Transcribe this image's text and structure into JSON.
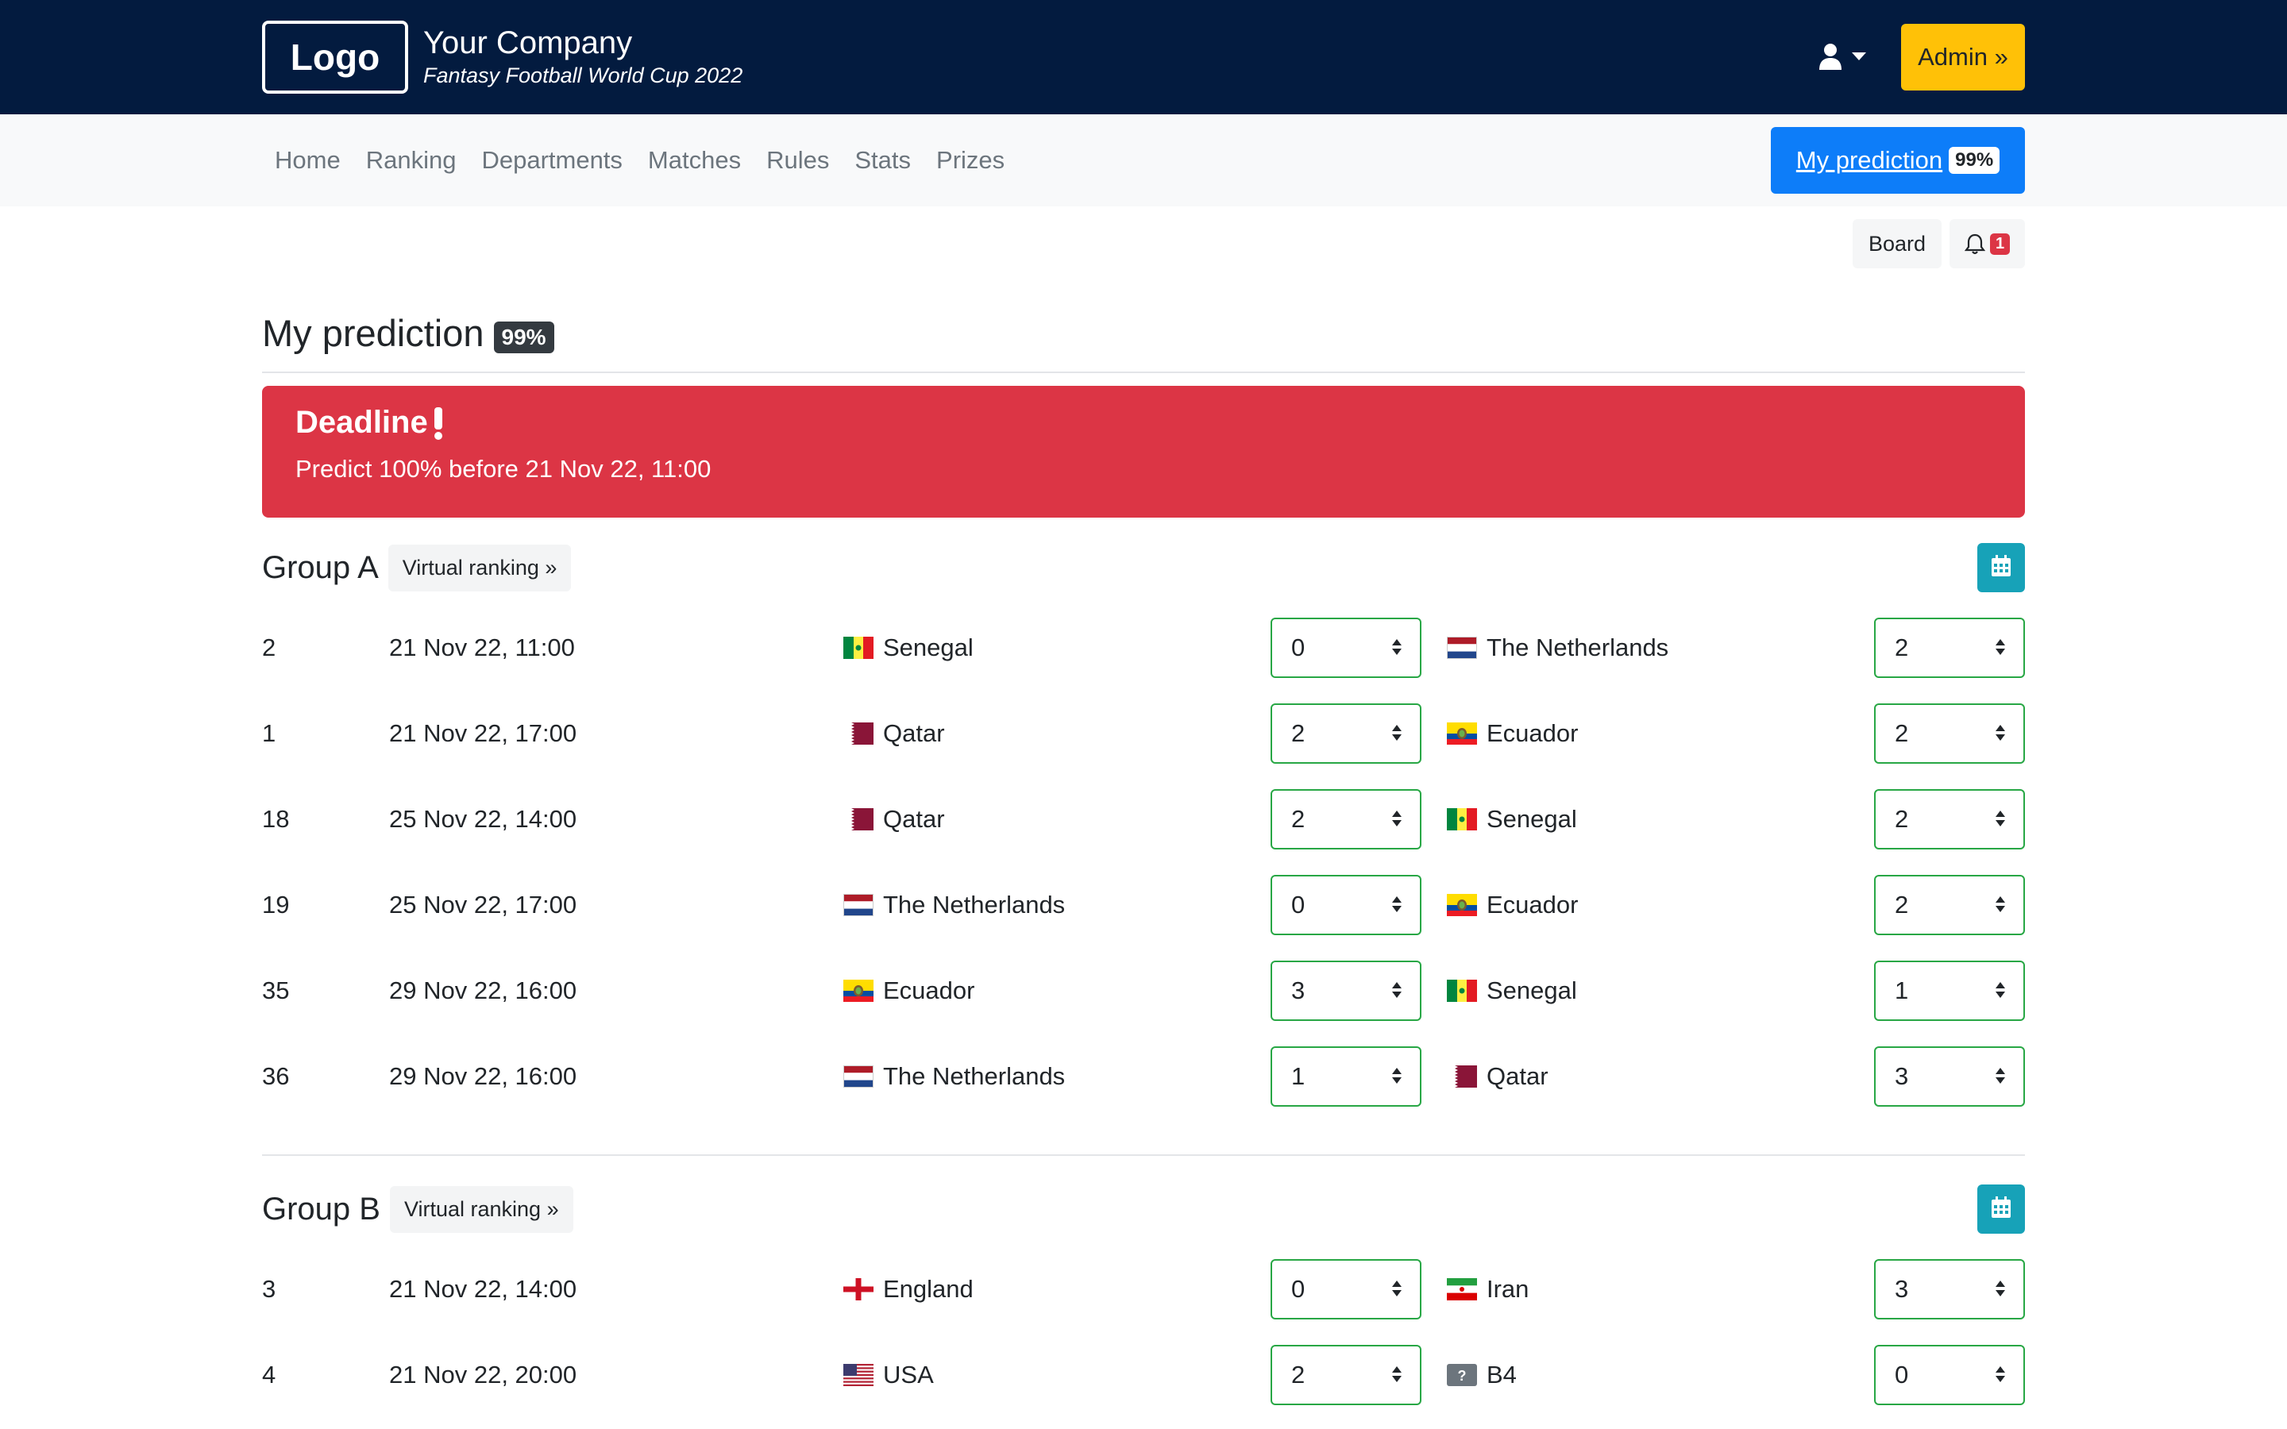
{
  "header": {
    "logo": "Logo",
    "company_name": "Your Company",
    "company_sub": "Fantasy Football World Cup 2022",
    "admin_label": "Admin »"
  },
  "nav": {
    "items": [
      "Home",
      "Ranking",
      "Departments",
      "Matches",
      "Rules",
      "Stats",
      "Prizes"
    ],
    "my_prediction_label": "My prediction",
    "my_prediction_pct": "99%"
  },
  "tools": {
    "board_label": "Board",
    "notifications_count": "1"
  },
  "page": {
    "title": "My prediction",
    "pct": "99%"
  },
  "alert": {
    "title": "Deadline",
    "message": "Predict 100% before 21 Nov 22, 11:00"
  },
  "colors": {
    "navy": "#031b3f",
    "admin": "#ffc107",
    "primary": "#0d7df9",
    "danger": "#dc3545",
    "success": "#28a745",
    "info": "#17a2b8"
  },
  "groups": [
    {
      "name": "Group A",
      "virtual_ranking_label": "Virtual ranking »",
      "matches": [
        {
          "num": "2",
          "date": "21 Nov 22, 11:00",
          "home": "Senegal",
          "home_flag": "senegal",
          "home_score": "0",
          "away": "The Netherlands",
          "away_flag": "netherlands",
          "away_score": "2"
        },
        {
          "num": "1",
          "date": "21 Nov 22, 17:00",
          "home": "Qatar",
          "home_flag": "qatar",
          "home_score": "2",
          "away": "Ecuador",
          "away_flag": "ecuador",
          "away_score": "2"
        },
        {
          "num": "18",
          "date": "25 Nov 22, 14:00",
          "home": "Qatar",
          "home_flag": "qatar",
          "home_score": "2",
          "away": "Senegal",
          "away_flag": "senegal",
          "away_score": "2"
        },
        {
          "num": "19",
          "date": "25 Nov 22, 17:00",
          "home": "The Netherlands",
          "home_flag": "netherlands",
          "home_score": "0",
          "away": "Ecuador",
          "away_flag": "ecuador",
          "away_score": "2"
        },
        {
          "num": "35",
          "date": "29 Nov 22, 16:00",
          "home": "Ecuador",
          "home_flag": "ecuador",
          "home_score": "3",
          "away": "Senegal",
          "away_flag": "senegal",
          "away_score": "1"
        },
        {
          "num": "36",
          "date": "29 Nov 22, 16:00",
          "home": "The Netherlands",
          "home_flag": "netherlands",
          "home_score": "1",
          "away": "Qatar",
          "away_flag": "qatar",
          "away_score": "3"
        }
      ]
    },
    {
      "name": "Group B",
      "virtual_ranking_label": "Virtual ranking »",
      "matches": [
        {
          "num": "3",
          "date": "21 Nov 22, 14:00",
          "home": "England",
          "home_flag": "england",
          "home_score": "0",
          "away": "Iran",
          "away_flag": "iran",
          "away_score": "3"
        },
        {
          "num": "4",
          "date": "21 Nov 22, 20:00",
          "home": "USA",
          "home_flag": "usa",
          "home_score": "2",
          "away": "B4",
          "away_flag": "unknown",
          "away_score": "0"
        }
      ]
    }
  ]
}
